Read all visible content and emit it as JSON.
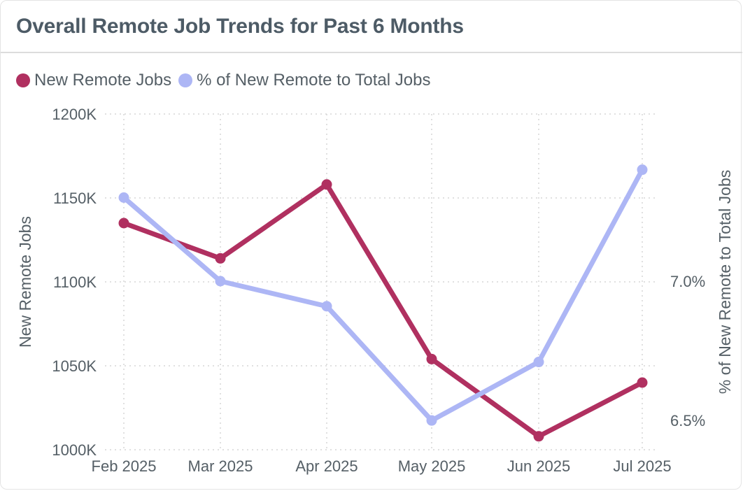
{
  "title": "Overall Remote Job Trends for Past 6 Months",
  "legend": [
    {
      "label": "New Remote Jobs",
      "color": "#b03060"
    },
    {
      "label": "% of New Remote to Total Jobs",
      "color": "#adb6f5"
    }
  ],
  "chart_data": {
    "type": "line",
    "title": "Overall Remote Job Trends for Past 6 Months",
    "categories": [
      "Feb 2025",
      "Mar 2025",
      "Apr 2025",
      "May 2025",
      "Jun 2025",
      "Jul 2025"
    ],
    "y_left": {
      "label": "New Remote Jobs",
      "ticks": [
        "1200K",
        "1150K",
        "1100K",
        "1050K",
        "1000K"
      ],
      "tick_values": [
        1200000,
        1150000,
        1100000,
        1050000,
        1000000
      ],
      "range": [
        1000000,
        1200000
      ]
    },
    "y_right": {
      "label": "% of New Remote to Total Jobs",
      "ticks": [
        "7.0%",
        "6.5%"
      ],
      "tick_values": [
        7.0,
        6.5
      ],
      "range": [
        6.395,
        7.6
      ]
    },
    "series": [
      {
        "name": "New Remote Jobs",
        "axis": "left",
        "color": "#b03060",
        "values": [
          1135000,
          1114000,
          1158000,
          1054000,
          1008000,
          1040000
        ]
      },
      {
        "name": "% of New Remote to Total Jobs",
        "axis": "right",
        "color": "#adb6f5",
        "values": [
          7.3,
          7.0,
          6.91,
          6.5,
          6.71,
          7.4
        ]
      }
    ],
    "grid": true,
    "legend_position": "top-left"
  }
}
